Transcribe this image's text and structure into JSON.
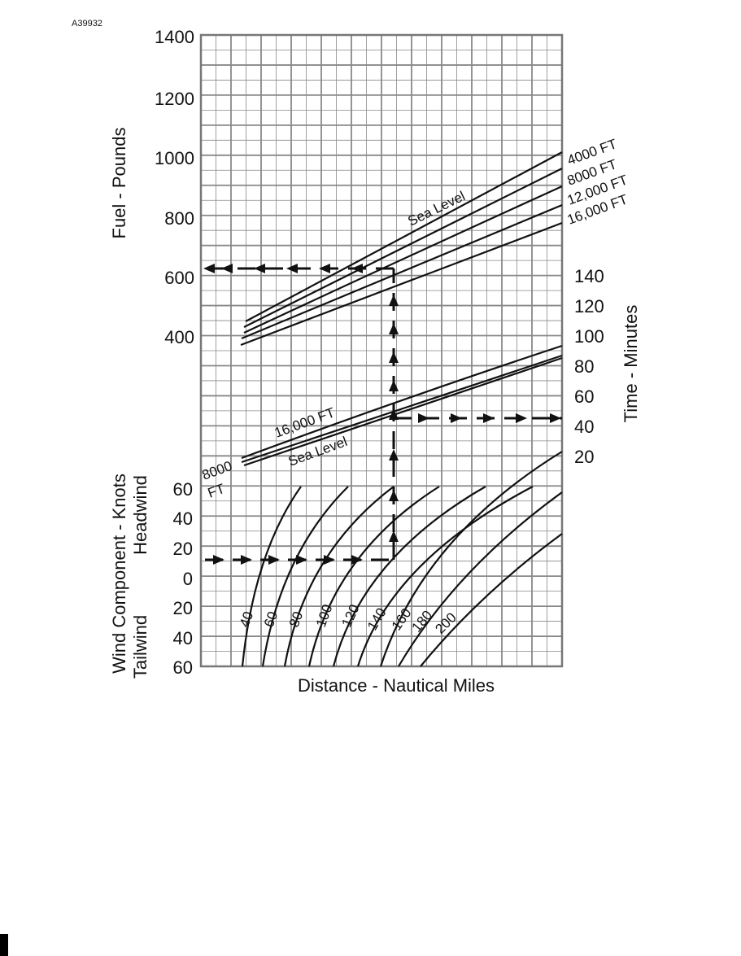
{
  "figure_id": "A39932",
  "fuel_axis": {
    "label": "Fuel - Pounds",
    "ticks": [
      "1400",
      "1200",
      "1000",
      "800",
      "600",
      "400"
    ]
  },
  "time_axis": {
    "label": "Time - Minutes",
    "ticks": [
      "140",
      "120",
      "100",
      "80",
      "60",
      "40",
      "20"
    ]
  },
  "wind_axis": {
    "label": "Wind Component - Knots",
    "headwind": "Headwind",
    "tailwind": "Tailwind",
    "ticks": [
      "60",
      "40",
      "20",
      "0",
      "20",
      "40",
      "60"
    ]
  },
  "x_axis_label": "Distance - Nautical Miles",
  "fuel_curves": [
    "Sea Level",
    "4000 FT",
    "8000 FT",
    "12,000 FT",
    "16,000 FT"
  ],
  "time_curves": [
    "16,000 FT",
    "Sea Level",
    "8000",
    "FT"
  ],
  "distance_curves": [
    "40",
    "60",
    "80",
    "100",
    "120",
    "140",
    "160",
    "180",
    "200"
  ]
}
